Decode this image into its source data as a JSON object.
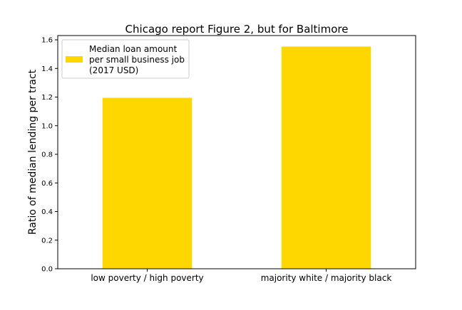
{
  "chart_data": {
    "type": "bar",
    "title": "Chicago report Figure 2, but for Baltimore",
    "xlabel": "",
    "ylabel": "Ratio of median lending per tract",
    "categories": [
      "low poverty / high poverty",
      "majority white / majority black"
    ],
    "series": [
      {
        "name": "Median loan amount per small business job (2017 USD)",
        "name_lines": [
          "Median loan amount",
          "per small business job",
          "(2017 USD)"
        ],
        "values": [
          1.195,
          1.553
        ],
        "color": "#FFD700"
      }
    ],
    "ylim": [
      0,
      1.63
    ],
    "yticks": [
      0.0,
      0.2,
      0.4,
      0.6,
      0.8,
      1.0,
      1.2,
      1.4,
      1.6
    ],
    "ytick_labels": [
      "0.0",
      "0.2",
      "0.4",
      "0.6",
      "0.8",
      "1.0",
      "1.2",
      "1.4",
      "1.6"
    ],
    "grid": false,
    "legend_position": "upper-left"
  }
}
